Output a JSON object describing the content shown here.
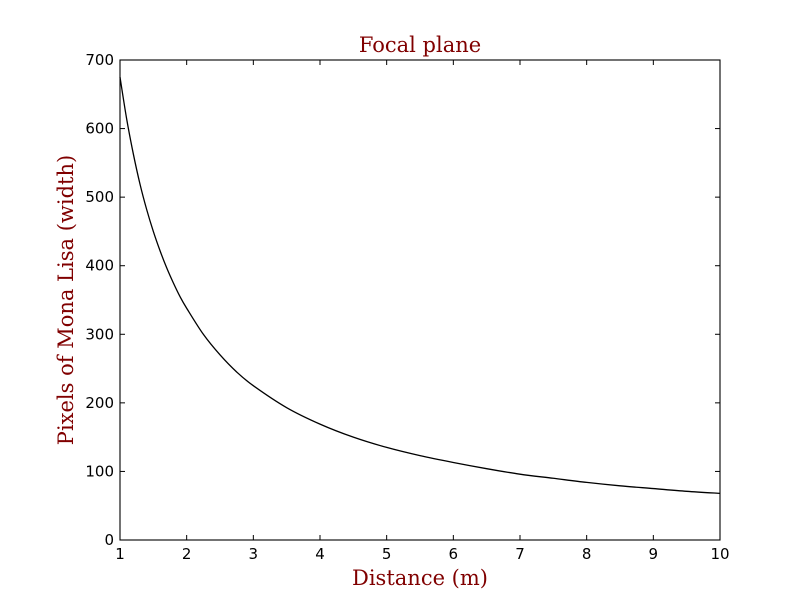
{
  "chart_data": {
    "type": "line",
    "title": "Focal plane",
    "xlabel": "Distance (m)",
    "ylabel": "Pixels of Mona Lisa (width)",
    "xlim": [
      1,
      10
    ],
    "ylim": [
      0,
      700
    ],
    "x_ticks": [
      "1",
      "2",
      "3",
      "4",
      "5",
      "6",
      "7",
      "8",
      "9",
      "10"
    ],
    "y_ticks": [
      "0",
      "100",
      "200",
      "300",
      "400",
      "500",
      "600",
      "700"
    ],
    "grid": false,
    "series": [
      {
        "x": [
          1.0,
          1.1,
          1.2,
          1.3,
          1.4,
          1.5,
          1.6,
          1.7,
          1.8,
          1.9,
          2.0,
          2.25,
          2.5,
          2.75,
          3.0,
          3.5,
          4.0,
          4.5,
          5.0,
          5.5,
          6.0,
          6.5,
          7.0,
          7.5,
          8.0,
          8.5,
          9.0,
          9.5,
          10.0
        ],
        "y": [
          675,
          614,
          563,
          519,
          482,
          450,
          422,
          397,
          375,
          355,
          338,
          300,
          270,
          245,
          225,
          193,
          169,
          150,
          135,
          123,
          113,
          104,
          96,
          90,
          84,
          79,
          75,
          71,
          68
        ]
      }
    ],
    "colors": {
      "title": "#800000",
      "axis_label": "#800000",
      "line": "#000000",
      "axes": "#000000"
    }
  }
}
